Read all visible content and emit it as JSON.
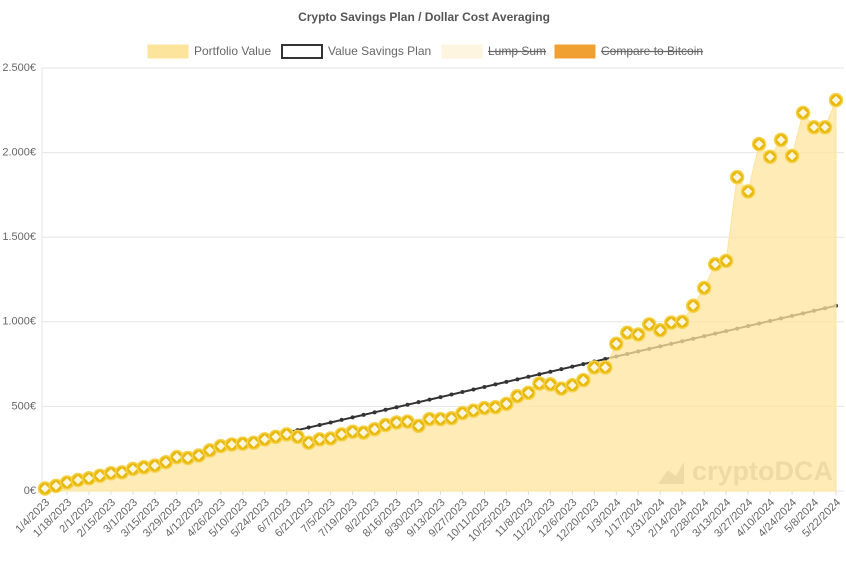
{
  "chart_data": {
    "type": "line",
    "title": "Crypto Savings Plan / Dollar Cost Averaging",
    "watermark": "cryptoDCA",
    "categories": [
      "1/4/2023",
      null,
      "1/18/2023",
      null,
      "2/1/2023",
      null,
      "2/15/2023",
      null,
      "3/1/2023",
      null,
      "3/15/2023",
      null,
      "3/29/2023",
      null,
      "4/12/2023",
      null,
      "4/26/2023",
      null,
      "5/10/2023",
      null,
      "5/24/2023",
      null,
      "6/7/2023",
      null,
      "6/21/2023",
      null,
      "7/5/2023",
      null,
      "7/19/2023",
      null,
      "8/2/2023",
      null,
      "8/16/2023",
      null,
      "8/30/2023",
      null,
      "9/13/2023",
      null,
      "9/27/2023",
      null,
      "10/11/2023",
      null,
      "10/25/2023",
      null,
      "11/8/2023",
      null,
      "11/22/2023",
      null,
      "12/6/2023",
      null,
      "12/20/2023",
      null,
      "1/3/2024",
      null,
      "1/17/2024",
      null,
      "1/31/2024",
      null,
      "2/14/2024",
      null,
      "2/28/2024",
      null,
      "3/13/2024",
      null,
      "3/27/2024",
      null,
      "4/10/2024",
      null,
      "4/24/2024",
      null,
      "5/8/2024",
      null,
      "5/22/2024"
    ],
    "series": [
      {
        "name": "Portfolio Value",
        "color": "#fde49c",
        "values": [
          15,
          30,
          50,
          65,
          75,
          90,
          105,
          110,
          130,
          140,
          150,
          170,
          200,
          195,
          210,
          240,
          265,
          275,
          280,
          285,
          305,
          320,
          335,
          320,
          285,
          305,
          310,
          335,
          350,
          345,
          365,
          390,
          405,
          410,
          385,
          425,
          425,
          430,
          460,
          475,
          490,
          495,
          515,
          560,
          580,
          635,
          630,
          605,
          625,
          655,
          730,
          730,
          870,
          935,
          925,
          985,
          950,
          995,
          1000,
          1095,
          1200,
          1340,
          1360,
          1855,
          1770,
          2050,
          1975,
          2075,
          1980,
          2235,
          2150,
          2150,
          2310
        ]
      },
      {
        "name": "Value Savings Plan",
        "color": "#333333",
        "values": [
          15,
          30,
          45,
          60,
          75,
          90,
          105,
          120,
          135,
          150,
          165,
          180,
          195,
          210,
          225,
          240,
          255,
          270,
          285,
          300,
          315,
          330,
          345,
          360,
          375,
          390,
          405,
          420,
          435,
          450,
          465,
          480,
          495,
          510,
          525,
          540,
          555,
          570,
          585,
          600,
          615,
          630,
          645,
          660,
          675,
          690,
          705,
          720,
          735,
          750,
          765,
          780,
          795,
          810,
          825,
          840,
          855,
          870,
          885,
          900,
          915,
          930,
          945,
          960,
          975,
          990,
          1005,
          1020,
          1035,
          1050,
          1065,
          1080,
          1095
        ]
      },
      {
        "name": "Lump Sum",
        "color": "#fdf5e0",
        "hidden": true
      },
      {
        "name": "Compare to Bitcoin",
        "color": "#f0a030",
        "hidden": true
      }
    ],
    "ylim": [
      0,
      2500
    ],
    "yticks": [
      {
        "value": 0,
        "label": "0€"
      },
      {
        "value": 500,
        "label": "500€"
      },
      {
        "value": 1000,
        "label": "1.000€"
      },
      {
        "value": 1500,
        "label": "1.500€"
      },
      {
        "value": 2000,
        "label": "2.000€"
      },
      {
        "value": 2500,
        "label": "2.500€"
      }
    ],
    "grid": true
  }
}
